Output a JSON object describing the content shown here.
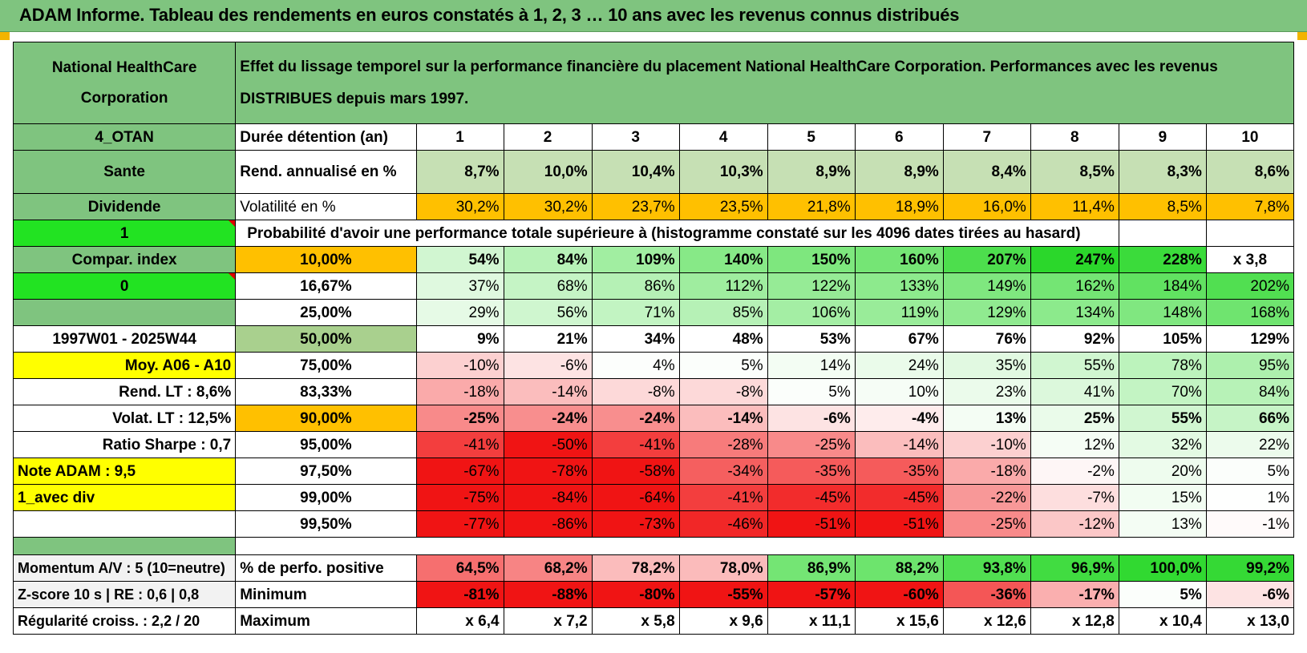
{
  "banner": "ADAM Informe. Tableau des rendements en euros constatés à 1, 2, 3 … 10 ans avec les revenus connus distribués",
  "header": {
    "name": "National HealthCare Corporation",
    "description": "Effet du lissage temporel sur la performance financière du placement National HealthCare Corporation. Performances avec les revenus DISTRIBUES depuis mars 1997."
  },
  "side": {
    "code": "4_OTAN",
    "sector": "Sante",
    "type": "Dividende",
    "flag1": "1",
    "compar": "Compar. index",
    "flag0": "0",
    "blank": "",
    "period": "1997W01 - 2025W44",
    "moy": "Moy. A06 - A10",
    "rend_lt": "Rend. LT :    8,6%",
    "volat_lt": "Volat. LT :    12,5%",
    "sharpe": "Ratio Sharpe :     0,7",
    "note": "Note ADAM : 9,5",
    "avec_div": "1_avec div",
    "momentum": "Momentum A/V : 5 (10=neutre)",
    "zscore": "Z-score 10 s | RE : 0,6 | 0,8",
    "regularite": "Régularité croiss. : 2,2 / 20"
  },
  "labels": {
    "duree": "Durée détention (an)",
    "rend": "Rend. annualisé en %",
    "vol": "Volatilité en %",
    "proba": "Probabilité d'avoir une performance totale supérieure à (histogramme constaté sur les 4096 dates tirées au hasard)",
    "pos": "% de perfo. positive",
    "min": "Minimum",
    "max": "Maximum"
  },
  "years": [
    "1",
    "2",
    "3",
    "4",
    "5",
    "6",
    "7",
    "8",
    "9",
    "10"
  ],
  "rend": [
    "8,7%",
    "10,0%",
    "10,4%",
    "10,3%",
    "8,9%",
    "8,9%",
    "8,4%",
    "8,5%",
    "8,3%",
    "8,6%"
  ],
  "vol": [
    "30,2%",
    "30,2%",
    "23,7%",
    "23,5%",
    "21,8%",
    "18,9%",
    "16,0%",
    "11,4%",
    "8,5%",
    "7,8%"
  ],
  "prob_rows": [
    {
      "p": "10,00%",
      "vals": [
        "54%",
        "84%",
        "109%",
        "140%",
        "150%",
        "160%",
        "207%",
        "247%",
        "228%",
        "x 3,8"
      ]
    },
    {
      "p": "16,67%",
      "vals": [
        "37%",
        "68%",
        "86%",
        "112%",
        "122%",
        "133%",
        "149%",
        "162%",
        "184%",
        "202%"
      ]
    },
    {
      "p": "25,00%",
      "vals": [
        "29%",
        "56%",
        "71%",
        "85%",
        "106%",
        "119%",
        "129%",
        "134%",
        "148%",
        "168%"
      ]
    },
    {
      "p": "50,00%",
      "vals": [
        "9%",
        "21%",
        "34%",
        "48%",
        "53%",
        "67%",
        "76%",
        "92%",
        "105%",
        "129%"
      ]
    },
    {
      "p": "75,00%",
      "vals": [
        "-10%",
        "-6%",
        "4%",
        "5%",
        "14%",
        "24%",
        "35%",
        "55%",
        "78%",
        "95%"
      ]
    },
    {
      "p": "83,33%",
      "vals": [
        "-18%",
        "-14%",
        "-8%",
        "-8%",
        "5%",
        "10%",
        "23%",
        "41%",
        "70%",
        "84%"
      ]
    },
    {
      "p": "90,00%",
      "vals": [
        "-25%",
        "-24%",
        "-24%",
        "-14%",
        "-6%",
        "-4%",
        "13%",
        "25%",
        "55%",
        "66%"
      ]
    },
    {
      "p": "95,00%",
      "vals": [
        "-41%",
        "-50%",
        "-41%",
        "-28%",
        "-25%",
        "-14%",
        "-10%",
        "12%",
        "32%",
        "22%"
      ]
    },
    {
      "p": "97,50%",
      "vals": [
        "-67%",
        "-78%",
        "-58%",
        "-34%",
        "-35%",
        "-35%",
        "-18%",
        "-2%",
        "20%",
        "5%"
      ]
    },
    {
      "p": "99,00%",
      "vals": [
        "-75%",
        "-84%",
        "-64%",
        "-41%",
        "-45%",
        "-45%",
        "-22%",
        "-7%",
        "15%",
        "1%"
      ]
    },
    {
      "p": "99,50%",
      "vals": [
        "-77%",
        "-86%",
        "-73%",
        "-46%",
        "-51%",
        "-51%",
        "-25%",
        "-12%",
        "13%",
        "-1%"
      ]
    }
  ],
  "pos": [
    "64,5%",
    "68,2%",
    "78,2%",
    "78,0%",
    "86,9%",
    "88,2%",
    "93,8%",
    "96,9%",
    "100,0%",
    "99,2%"
  ],
  "min": [
    "-81%",
    "-88%",
    "-80%",
    "-55%",
    "-57%",
    "-60%",
    "-36%",
    "-17%",
    "5%",
    "-6%"
  ],
  "max": [
    "x 6,4",
    "x 7,2",
    "x 5,8",
    "x 9,6",
    "x 11,1",
    "x 15,6",
    "x 12,6",
    "x 12,8",
    "x 10,4",
    "x 13,0"
  ],
  "colors": {
    "header_green": "#7fc47f",
    "bright_green": "#22e322",
    "yellow": "#ffff00",
    "orange": "#ffc000",
    "olive": "#a9d08e",
    "label_red": "#d20000"
  }
}
